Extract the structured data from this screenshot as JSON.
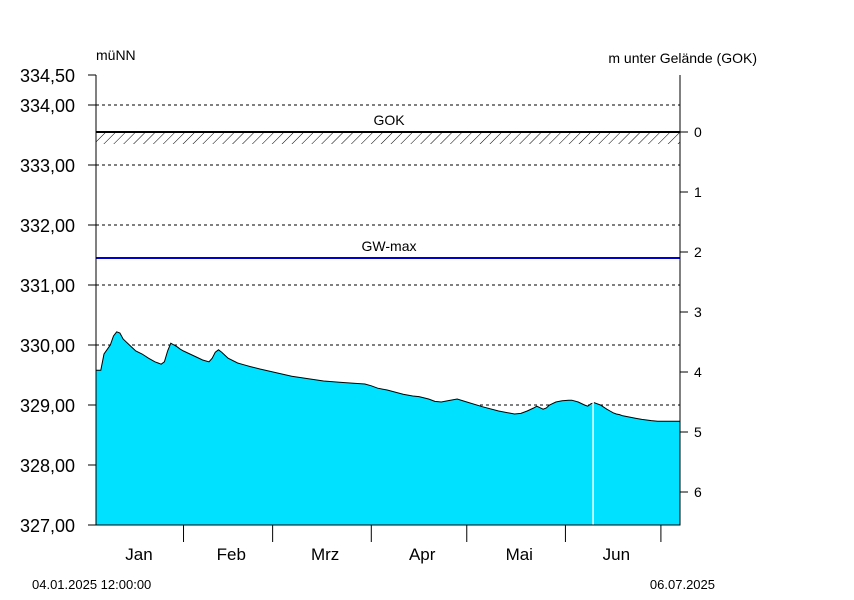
{
  "chart_data": {
    "type": "area",
    "left_axis_label": "müNN",
    "right_axis_label": "m unter Gelände (GOK)",
    "ylim": [
      327.0,
      334.5
    ],
    "left_ticks": [
      {
        "value": 334.5,
        "label": "334,50"
      },
      {
        "value": 334.0,
        "label": "334,00"
      },
      {
        "value": 333.0,
        "label": "333,00"
      },
      {
        "value": 332.0,
        "label": "332,00"
      },
      {
        "value": 331.0,
        "label": "331,00"
      },
      {
        "value": 330.0,
        "label": "330,00"
      },
      {
        "value": 329.0,
        "label": "329,00"
      },
      {
        "value": 328.0,
        "label": "328,00"
      },
      {
        "value": 327.0,
        "label": "327,00"
      }
    ],
    "right_ticks": [
      {
        "depth": 0,
        "label": "0"
      },
      {
        "depth": 1,
        "label": "1"
      },
      {
        "depth": 2,
        "label": "2"
      },
      {
        "depth": 3,
        "label": "3"
      },
      {
        "depth": 4,
        "label": "4"
      },
      {
        "depth": 5,
        "label": "5"
      },
      {
        "depth": 6,
        "label": "6"
      }
    ],
    "gridlines": [
      334.0,
      333.0,
      332.0,
      331.0,
      330.0,
      329.0,
      328.0
    ],
    "reference_lines": [
      {
        "label": "GOK",
        "value": 333.55,
        "color": "#000000"
      },
      {
        "label": "GW-max",
        "value": 331.45,
        "color": "#0000cc"
      }
    ],
    "x_start_label": "04.01.2025 12:00:00",
    "x_end_label": "06.07.2025",
    "x_day_range": [
      3.5,
      187
    ],
    "month_labels": [
      {
        "label": "Jan",
        "day": 17
      },
      {
        "label": "Feb",
        "day": 46
      },
      {
        "label": "Mrz",
        "day": 75.5
      },
      {
        "label": "Apr",
        "day": 106
      },
      {
        "label": "Mai",
        "day": 136.5
      },
      {
        "label": "Jun",
        "day": 167
      }
    ],
    "month_ticks": [
      31,
      59,
      90,
      120,
      151,
      181
    ],
    "gap_day": 159.7,
    "fill_color": "#00e1ff",
    "series": [
      {
        "x": [
          3.5,
          5,
          6,
          8,
          9,
          10,
          11,
          12,
          14,
          16,
          18,
          20,
          22,
          23,
          24,
          25,
          26,
          27,
          28,
          29,
          30,
          31,
          33,
          35,
          37,
          39,
          40,
          41,
          42,
          43,
          44,
          45,
          48,
          50,
          52,
          55,
          60,
          65,
          70,
          75,
          80,
          85,
          88,
          90,
          92,
          95,
          100,
          103,
          105,
          108,
          110,
          112,
          114,
          117,
          120,
          125,
          130,
          135,
          137,
          139,
          141,
          142,
          144,
          145,
          146,
          148,
          150,
          152,
          153,
          155,
          157,
          158,
          159,
          160,
          162,
          164,
          165,
          166,
          167,
          168,
          169,
          171,
          173,
          175,
          178,
          180,
          183,
          185,
          187
        ],
        "y": [
          329.58,
          329.58,
          329.85,
          330.0,
          330.15,
          330.22,
          330.2,
          330.1,
          330.0,
          329.9,
          329.85,
          329.78,
          329.72,
          329.7,
          329.68,
          329.72,
          329.9,
          330.03,
          330.0,
          329.97,
          329.93,
          329.9,
          329.85,
          329.8,
          329.75,
          329.72,
          329.78,
          329.88,
          329.92,
          329.88,
          329.83,
          329.78,
          329.7,
          329.67,
          329.64,
          329.6,
          329.54,
          329.48,
          329.44,
          329.4,
          329.38,
          329.36,
          329.35,
          329.32,
          329.28,
          329.25,
          329.18,
          329.15,
          329.14,
          329.1,
          329.06,
          329.05,
          329.07,
          329.1,
          329.05,
          328.97,
          328.9,
          328.85,
          328.86,
          328.9,
          328.95,
          328.98,
          328.93,
          328.95,
          329.0,
          329.05,
          329.07,
          329.08,
          329.08,
          329.05,
          329.0,
          328.98,
          329.02,
          329.04,
          329.0,
          328.93,
          328.9,
          328.87,
          328.85,
          328.84,
          328.82,
          328.8,
          328.78,
          328.76,
          328.74,
          328.73,
          328.73,
          328.73,
          328.73
        ]
      }
    ]
  }
}
